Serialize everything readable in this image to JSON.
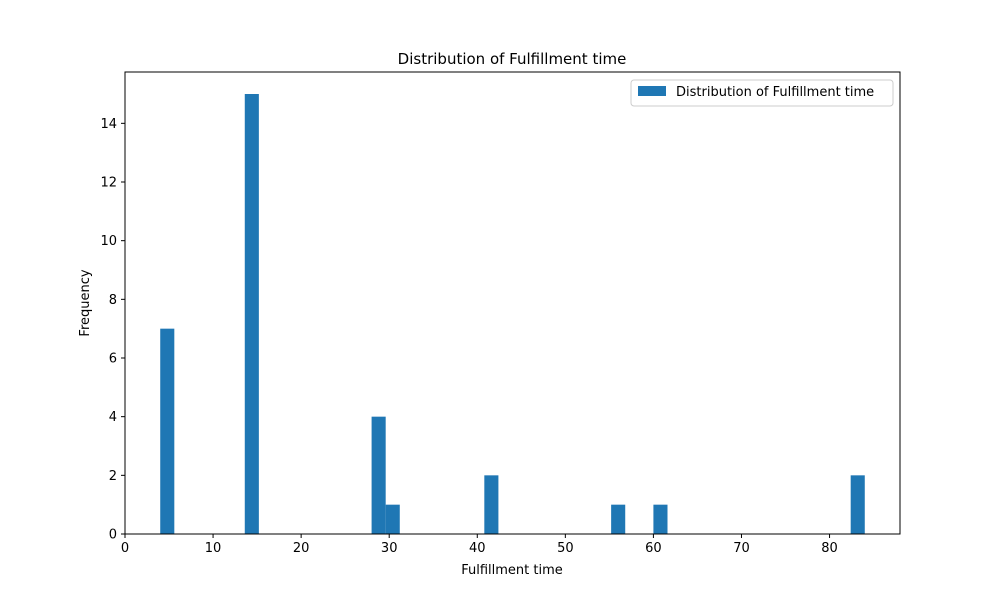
{
  "chart_data": {
    "type": "bar",
    "title": "Distribution of Fulfillment time",
    "xlabel": "Fulfillment time",
    "ylabel": "Frequency",
    "xlim": [
      0,
      88
    ],
    "ylim": [
      0,
      15.75
    ],
    "x_ticks": [
      0,
      10,
      20,
      30,
      40,
      50,
      60,
      70,
      80
    ],
    "y_ticks": [
      0,
      2,
      4,
      6,
      8,
      10,
      12,
      14
    ],
    "bin_width": 1.6,
    "bins": [
      {
        "x0": 4.0,
        "x1": 5.6,
        "count": 7
      },
      {
        "x0": 13.6,
        "x1": 15.2,
        "count": 15
      },
      {
        "x0": 28.0,
        "x1": 29.6,
        "count": 4
      },
      {
        "x0": 29.6,
        "x1": 31.2,
        "count": 1
      },
      {
        "x0": 40.8,
        "x1": 42.4,
        "count": 2
      },
      {
        "x0": 55.2,
        "x1": 56.8,
        "count": 1
      },
      {
        "x0": 60.0,
        "x1": 61.6,
        "count": 1
      },
      {
        "x0": 82.4,
        "x1": 84.0,
        "count": 2
      }
    ],
    "series": [
      {
        "name": "Distribution of Fulfillment time",
        "color": "#1f77b4"
      }
    ],
    "legend_position": "top-right",
    "grid": false
  }
}
